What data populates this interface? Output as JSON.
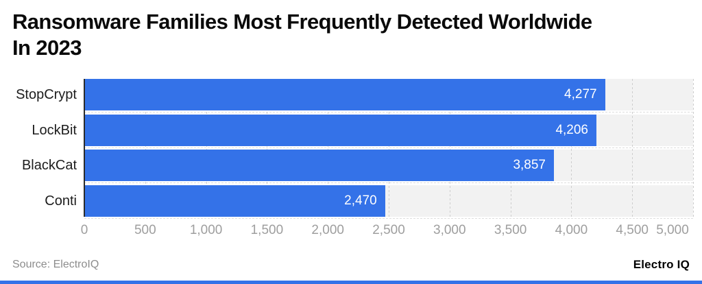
{
  "title": {
    "lines": [
      "Ransomware Families Most Frequently Detected Worldwide",
      "In 2023"
    ]
  },
  "chart_data": {
    "type": "bar",
    "orientation": "horizontal",
    "title": "Ransomware Families Most Frequently Detected Worldwide In 2023",
    "categories": [
      "StopCrypt",
      "LockBit",
      "BlackCat",
      "Conti"
    ],
    "values": [
      4277,
      4206,
      3857,
      2470
    ],
    "value_labels": [
      "4,277",
      "4,206",
      "3,857",
      "2,470"
    ],
    "xlabel": "",
    "ylabel": "",
    "xlim": [
      0,
      5000
    ],
    "x_ticks": [
      0,
      500,
      1000,
      1500,
      2000,
      2500,
      3000,
      3500,
      4000,
      4500,
      5000
    ],
    "x_tick_labels": [
      "0",
      "500",
      "1,000",
      "1,500",
      "2,000",
      "2,500",
      "3,000",
      "3,500",
      "4,000",
      "4,500",
      "5,000"
    ],
    "grid": true,
    "legend": false,
    "bar_color": "#3472e8",
    "track_color": "#f2f2f2"
  },
  "footer": {
    "source": "Source: ElectroIQ",
    "brand": "Electro IQ",
    "accent_color": "#3472e8"
  }
}
